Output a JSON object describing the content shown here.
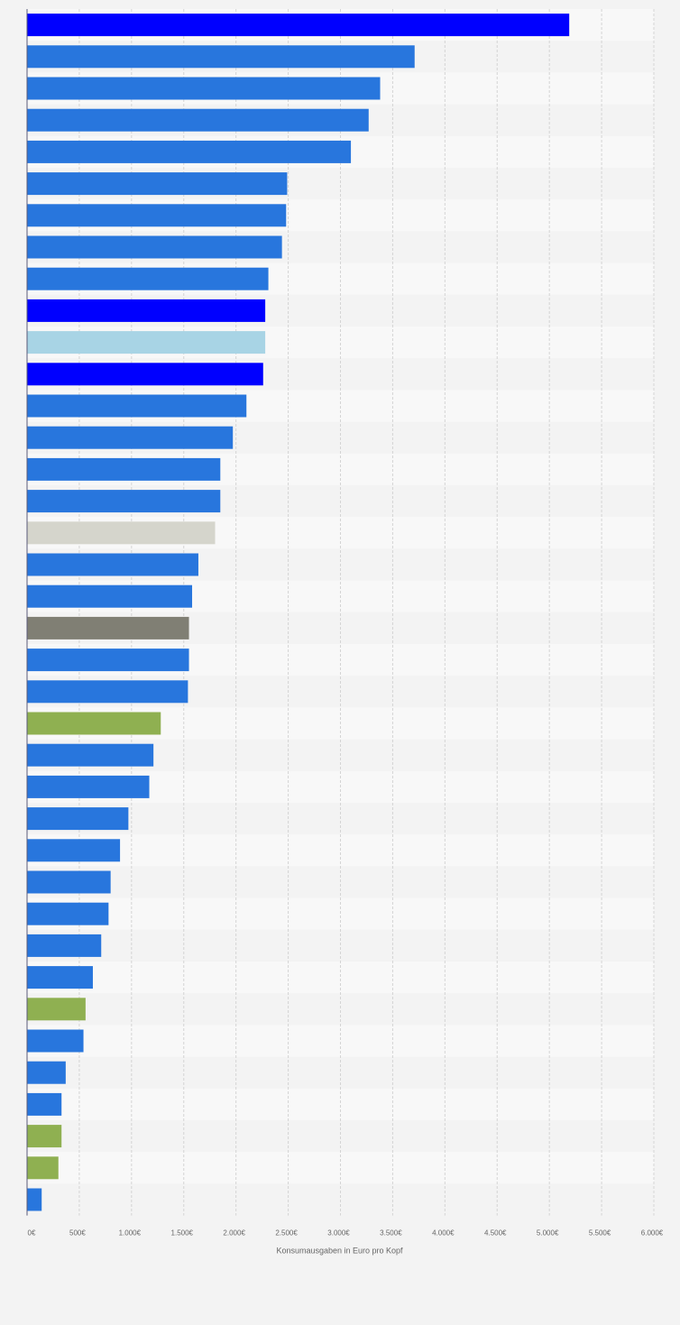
{
  "chart_data": {
    "type": "bar",
    "orientation": "horizontal",
    "title": "",
    "xlabel": "Konsumausgaben in Euro pro Kopf",
    "ylabel": "",
    "xlim": [
      0,
      6000
    ],
    "x_ticks": [
      0,
      500,
      1000,
      1500,
      2000,
      2500,
      3000,
      3500,
      4000,
      4500,
      5000,
      5500,
      6000
    ],
    "x_tick_labels": [
      "0€",
      "500€",
      "1.000€",
      "1.500€",
      "2.000€",
      "2.500€",
      "3.000€",
      "3.500€",
      "4.000€",
      "4.500€",
      "5.000€",
      "5.500€",
      "6.000€"
    ],
    "categories": [
      "",
      "",
      "",
      "",
      "",
      "",
      "",
      "",
      "",
      "",
      "",
      "",
      "",
      "",
      "",
      "",
      "",
      "",
      "",
      "",
      "",
      "",
      "",
      "",
      "",
      "",
      "",
      "",
      "",
      "",
      "",
      "",
      "",
      "",
      "",
      "",
      "",
      ""
    ],
    "values": [
      5190,
      3710,
      3380,
      3270,
      3100,
      2490,
      2480,
      2440,
      2310,
      2280,
      2280,
      2260,
      2100,
      1970,
      1850,
      1850,
      1800,
      1640,
      1580,
      1550,
      1550,
      1540,
      1280,
      1210,
      1170,
      970,
      890,
      800,
      780,
      710,
      630,
      560,
      540,
      370,
      330,
      330,
      300,
      140
    ],
    "bar_colors": [
      "#0000ff",
      "#2876dd",
      "#2876dd",
      "#2876dd",
      "#2876dd",
      "#2876dd",
      "#2876dd",
      "#2876dd",
      "#2876dd",
      "#0000ff",
      "#a8d4e5",
      "#0000ff",
      "#2876dd",
      "#2876dd",
      "#2876dd",
      "#2876dd",
      "#d5d5cc",
      "#2876dd",
      "#2876dd",
      "#807f74",
      "#2876dd",
      "#2876dd",
      "#8fb051",
      "#2876dd",
      "#2876dd",
      "#2876dd",
      "#2876dd",
      "#2876dd",
      "#2876dd",
      "#2876dd",
      "#2876dd",
      "#8fb051",
      "#2876dd",
      "#2876dd",
      "#2876dd",
      "#8fb051",
      "#8fb051",
      "#2876dd"
    ],
    "grid": true,
    "legend": "none",
    "colors": {
      "background": "#f3f3f3",
      "band_light": "#f8f8f8",
      "band_dark": "#f3f3f3",
      "gridline": "#d4d4d4",
      "axis": "#5a5a78",
      "text": "#666666"
    }
  }
}
